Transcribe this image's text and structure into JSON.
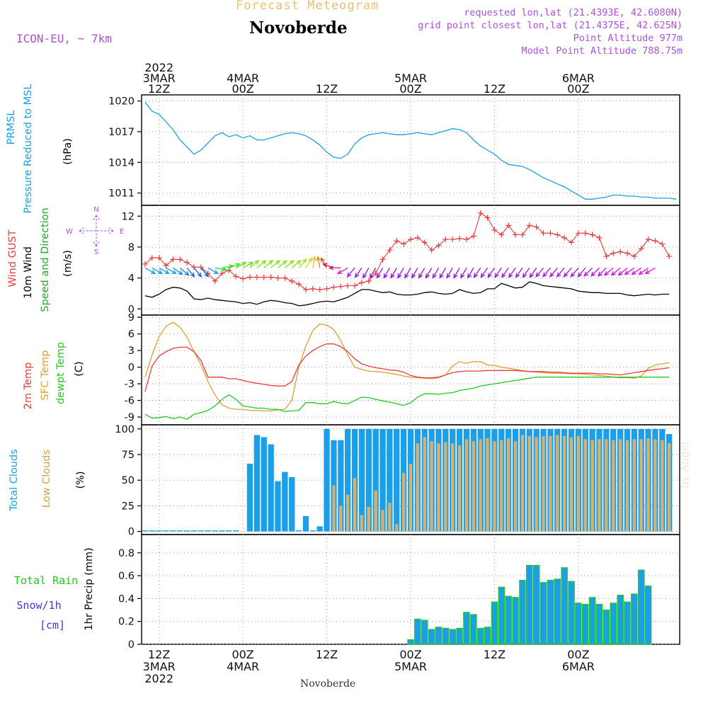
{
  "header": {
    "forecast_title": "Forecast Meteogram",
    "location": "Novoberde",
    "model": "ICON-EU, ~ 7km",
    "requested": "requested lon,lat (21.4393E, 42.6080N)",
    "gridpoint": "grid point closest lon,lat (21.4375E, 42.625N)",
    "point_altitude": "Point Altitude 977m",
    "model_altitude": "Model Point Altitude 788.75m",
    "watermark": "by Angel",
    "footer_location": "Novoberde"
  },
  "time_axis": {
    "top_labels": [
      {
        "t": 0,
        "lines": [
          "2022",
          "3MAR",
          "12Z"
        ]
      },
      {
        "t": 12,
        "lines": [
          "4MAR",
          "00Z"
        ]
      },
      {
        "t": 24,
        "lines": [
          "12Z"
        ]
      },
      {
        "t": 36,
        "lines": [
          "5MAR",
          "00Z"
        ]
      },
      {
        "t": 48,
        "lines": [
          "12Z"
        ]
      },
      {
        "t": 60,
        "lines": [
          "6MAR",
          "00Z"
        ]
      }
    ],
    "bottom_labels": [
      {
        "t": 0,
        "lines": [
          "12Z",
          "3MAR",
          "2022"
        ]
      },
      {
        "t": 12,
        "lines": [
          "00Z",
          "4MAR"
        ]
      },
      {
        "t": 24,
        "lines": [
          "12Z"
        ]
      },
      {
        "t": 36,
        "lines": [
          "00Z",
          "5MAR"
        ]
      },
      {
        "t": 48,
        "lines": [
          "12Z"
        ]
      },
      {
        "t": 60,
        "lines": [
          "00Z",
          "6MAR"
        ]
      }
    ]
  },
  "colors": {
    "pressure": "#1a9fe8",
    "gust": "#e83c3c",
    "wind": "#000000",
    "temp2m": "#e83c3c",
    "sfc": "#e0a030",
    "dewpt": "#22c822",
    "cloud_total": "#1a9fe8",
    "cloud_low": "#d8b070",
    "rain": "#1a9fe8",
    "rain_edge": "#22c822",
    "purple": "#b050e0",
    "orange_title": "#f0c070"
  },
  "chart_data": [
    {
      "type": "line",
      "panel": "pressure",
      "ylabels": [
        "PRMSL",
        "Pressure Reduced to MSL",
        "(hPa)"
      ],
      "yticks": [
        1011,
        1014,
        1017,
        1020
      ],
      "ylim": [
        1009.8,
        1020.6
      ],
      "xlim": [
        -2.5,
        74.5
      ],
      "series": [
        {
          "name": "PRMSL",
          "x": [
            -2,
            -1,
            0,
            2,
            3,
            4,
            5,
            6,
            7,
            8,
            9,
            10,
            11,
            12,
            13,
            14,
            15,
            16,
            17,
            18,
            19,
            20,
            21,
            22,
            23,
            24,
            25,
            26,
            27,
            28,
            29,
            30,
            31,
            32,
            33,
            34,
            35,
            36,
            37,
            38,
            39,
            40,
            41,
            42,
            43,
            44,
            45,
            46,
            47,
            48,
            49,
            50,
            51,
            52,
            53,
            54,
            55,
            56,
            57,
            58,
            59,
            60,
            61,
            62,
            63,
            64,
            65,
            66,
            67,
            68,
            69,
            70,
            71,
            72,
            73,
            74
          ],
          "y": [
            1019.9,
            1019.0,
            1018.7,
            1017.2,
            1016.2,
            1015.5,
            1014.8,
            1015.2,
            1015.9,
            1016.6,
            1016.9,
            1016.5,
            1016.7,
            1016.4,
            1016.6,
            1016.2,
            1016.2,
            1016.4,
            1016.6,
            1016.8,
            1016.9,
            1016.8,
            1016.6,
            1016.2,
            1015.7,
            1015.0,
            1014.5,
            1014.4,
            1014.8,
            1015.8,
            1016.4,
            1016.7,
            1016.8,
            1016.9,
            1016.8,
            1016.7,
            1016.7,
            1016.8,
            1016.9,
            1016.8,
            1016.7,
            1016.9,
            1017.1,
            1017.3,
            1017.2,
            1016.9,
            1016.2,
            1015.6,
            1015.2,
            1014.8,
            1014.2,
            1013.8,
            1013.7,
            1013.6,
            1013.3,
            1012.9,
            1012.5,
            1012.2,
            1011.9,
            1011.6,
            1011.2,
            1010.8,
            1010.4,
            1010.4,
            1010.5,
            1010.6,
            1010.8,
            1010.8,
            1010.7,
            1010.7,
            1010.6,
            1010.6,
            1010.5,
            1010.5,
            1010.5,
            1010.4
          ]
        }
      ]
    },
    {
      "type": "line",
      "panel": "wind",
      "ylabels": [
        "Wind GUST",
        "10m Wind",
        "Speed and Direction",
        "(m/s)"
      ],
      "compass": [
        "N",
        "W",
        "E",
        "S"
      ],
      "yticks": [
        0,
        4,
        8,
        12
      ],
      "ylim": [
        -0.8,
        13.4
      ],
      "xlim": [
        -2.5,
        74.5
      ],
      "gust": [
        5.8,
        6.6,
        6.6,
        5.6,
        6.4,
        6.4,
        6.0,
        5.4,
        5.4,
        4.6,
        3.6,
        4.6,
        5.0,
        4.2,
        3.9,
        4.1,
        4.1,
        4.1,
        4.1,
        4.0,
        4.0,
        3.6,
        3.2,
        2.5,
        2.6,
        2.5,
        2.6,
        2.8,
        2.9,
        3.0,
        3.0,
        3.4,
        3.6,
        4.6,
        6.4,
        7.6,
        8.8,
        8.4,
        9.0,
        9.2,
        8.6,
        7.6,
        8.2,
        9.0,
        9.0,
        9.1,
        9.0,
        9.4,
        12.4,
        11.8,
        10.2,
        9.6,
        10.8,
        9.6,
        9.6,
        10.8,
        10.6,
        9.8,
        9.8,
        9.6,
        9.2,
        8.6,
        9.8,
        9.8,
        9.6,
        9.2,
        6.8,
        7.2,
        7.4,
        7.2,
        6.8,
        7.8,
        9.0,
        8.8,
        8.4,
        6.8
      ],
      "speed": [
        1.7,
        1.5,
        1.9,
        2.5,
        2.8,
        2.7,
        2.3,
        1.3,
        1.2,
        1.4,
        1.2,
        1.1,
        1.0,
        0.9,
        0.7,
        0.8,
        0.6,
        0.9,
        1.1,
        1.0,
        0.8,
        0.7,
        0.4,
        0.5,
        0.7,
        0.9,
        1.0,
        0.9,
        1.2,
        1.5,
        2.0,
        2.5,
        2.5,
        2.3,
        2.1,
        2.2,
        1.9,
        1.8,
        1.8,
        1.9,
        2.1,
        2.2,
        2.0,
        1.9,
        2.0,
        2.5,
        2.2,
        2.0,
        2.1,
        2.6,
        2.6,
        3.3,
        3.0,
        2.7,
        2.8,
        3.5,
        3.3,
        3.0,
        2.9,
        2.8,
        2.7,
        2.6,
        2.3,
        2.2,
        2.1,
        2.1,
        2.0,
        2.0,
        2.0,
        1.8,
        1.7,
        1.8,
        1.9,
        1.8,
        1.9,
        1.9
      ],
      "dir_deg": [
        300,
        300,
        300,
        300,
        305,
        310,
        320,
        320,
        320,
        300,
        280,
        260,
        250,
        240,
        240,
        230,
        230,
        230,
        230,
        230,
        230,
        230,
        220,
        210,
        190,
        170,
        150,
        110,
        90,
        60,
        40,
        35,
        30,
        30,
        30,
        30,
        30,
        30,
        30,
        30,
        30,
        30,
        30,
        30,
        30,
        30,
        30,
        30,
        35,
        35,
        35,
        35,
        35,
        35,
        35,
        35,
        35,
        40,
        40,
        40,
        40,
        40,
        40,
        40,
        45,
        45,
        45,
        50,
        50,
        50,
        55,
        55,
        55,
        60,
        60,
        60
      ]
    },
    {
      "type": "line",
      "panel": "temperature",
      "ylabels": [
        "2m Temp",
        "SFC Temp",
        "dewpt Temp",
        "(C)"
      ],
      "yticks": [
        -9,
        -6,
        -3,
        0,
        3,
        6,
        9
      ],
      "ylim": [
        -10.4,
        9.4
      ],
      "xlim": [
        -2.5,
        74.5
      ],
      "series": [
        {
          "name": "2m Temp",
          "y": [
            -4.4,
            0.2,
            2.0,
            2.8,
            3.4,
            3.6,
            3.6,
            2.8,
            1.2,
            -1.8,
            -1.8,
            -1.8,
            -2.1,
            -2.1,
            -2.4,
            -2.7,
            -2.9,
            -3.1,
            -3.3,
            -3.4,
            -3.4,
            -2.6,
            0.4,
            2.0,
            3.0,
            3.7,
            4.2,
            4.2,
            3.7,
            2.8,
            1.5,
            0.6,
            0.2,
            -0.1,
            -0.3,
            -0.5,
            -0.6,
            -0.9,
            -1.5,
            -1.8,
            -1.9,
            -1.9,
            -1.8,
            -1.4,
            -1.0,
            -0.8,
            -0.7,
            -0.7,
            -0.7,
            -0.6,
            -0.6,
            -0.6,
            -0.6,
            -0.6,
            -0.7,
            -0.8,
            -0.8,
            -0.8,
            -0.9,
            -0.9,
            -1.0,
            -1.1,
            -1.1,
            -1.1,
            -1.1,
            -1.2,
            -1.2,
            -1.3,
            -1.4,
            -1.2,
            -1.0,
            -0.8,
            -0.6,
            -0.4,
            -0.3,
            -0.1
          ]
        },
        {
          "name": "SFC Temp",
          "y": [
            -1.8,
            2.2,
            5.5,
            7.4,
            8.1,
            7.2,
            5.4,
            2.8,
            0.4,
            -2.6,
            -5.0,
            -6.8,
            -7.4,
            -7.6,
            -7.6,
            -7.8,
            -7.8,
            -7.9,
            -7.9,
            -7.7,
            -7.6,
            -6.0,
            0.0,
            3.8,
            6.6,
            7.8,
            7.6,
            6.8,
            4.8,
            2.2,
            0.0,
            -0.4,
            -0.7,
            -0.8,
            -0.9,
            -1.1,
            -1.3,
            -1.6,
            -1.8,
            -1.9,
            -2.0,
            -2.1,
            -1.9,
            -1.4,
            0.2,
            1.0,
            0.7,
            1.0,
            1.0,
            0.4,
            0.3,
            0.0,
            -0.2,
            -0.4,
            -0.6,
            -0.8,
            -0.9,
            -1.0,
            -1.1,
            -1.1,
            -1.1,
            -1.2,
            -1.2,
            -1.3,
            -1.4,
            -1.5,
            -1.6,
            -1.8,
            -1.9,
            -1.9,
            -2.0,
            -1.6,
            -0.2,
            0.4,
            0.6,
            0.8
          ]
        },
        {
          "name": "dewpt Temp",
          "y": [
            -8.5,
            -9.2,
            -9.1,
            -8.9,
            -9.3,
            -9.0,
            -9.4,
            -8.5,
            -8.2,
            -7.8,
            -7.0,
            -5.8,
            -5.0,
            -5.8,
            -7.0,
            -7.2,
            -7.4,
            -7.4,
            -7.6,
            -7.6,
            -8.0,
            -7.9,
            -7.8,
            -6.4,
            -6.4,
            -6.6,
            -6.6,
            -6.2,
            -6.5,
            -6.6,
            -6.0,
            -5.4,
            -5.5,
            -5.8,
            -6.1,
            -6.3,
            -6.6,
            -6.9,
            -6.4,
            -5.4,
            -4.8,
            -4.8,
            -4.9,
            -4.7,
            -4.6,
            -4.2,
            -4.0,
            -3.8,
            -3.4,
            -3.2,
            -3.0,
            -2.8,
            -2.6,
            -2.4,
            -2.2,
            -2.0,
            -1.8,
            -1.8,
            -1.8,
            -1.8,
            -1.8,
            -1.8,
            -1.8,
            -1.8,
            -1.8,
            -1.8,
            -1.8,
            -1.8,
            -1.8,
            -1.8,
            -1.8,
            -1.8,
            -1.8,
            -1.8,
            -1.8,
            -1.8
          ]
        }
      ]
    },
    {
      "type": "bar",
      "panel": "clouds",
      "ylabels": [
        "Total Clouds",
        "Low Clouds",
        "(%)"
      ],
      "yticks": [
        0,
        25,
        50,
        75,
        100
      ],
      "ylim": [
        -3,
        104
      ],
      "xlim": [
        -2.5,
        74.5
      ],
      "series": [
        {
          "name": "Total Clouds",
          "values": [
            1,
            1,
            1,
            1,
            1,
            1,
            1,
            1,
            1,
            1,
            1,
            1,
            1,
            1,
            0,
            66,
            94,
            92,
            85,
            49,
            58,
            53,
            1,
            15,
            1,
            5,
            100,
            89,
            89,
            100,
            100,
            100,
            100,
            100,
            100,
            100,
            100,
            100,
            100,
            100,
            100,
            100,
            100,
            100,
            100,
            100,
            100,
            100,
            100,
            100,
            100,
            100,
            100,
            100,
            100,
            100,
            100,
            100,
            100,
            100,
            100,
            100,
            100,
            100,
            100,
            100,
            100,
            100,
            100,
            100,
            100,
            100,
            100,
            100,
            100,
            95
          ]
        },
        {
          "name": "Low Clouds",
          "values": [
            0,
            0,
            0,
            0,
            0,
            0,
            0,
            0,
            0,
            0,
            0,
            0,
            0,
            0,
            0,
            0,
            0,
            0,
            0,
            0,
            0,
            0,
            0,
            0,
            0,
            0,
            0,
            45,
            25,
            36,
            52,
            16,
            24,
            40,
            21,
            28,
            7,
            57,
            66,
            86,
            92,
            88,
            86,
            87,
            86,
            84,
            90,
            88,
            90,
            91,
            88,
            89,
            91,
            88,
            94,
            93,
            92,
            93,
            93,
            94,
            93,
            92,
            93,
            90,
            89,
            90,
            90,
            89,
            90,
            89,
            90,
            90,
            91,
            90,
            89,
            86
          ]
        }
      ]
    },
    {
      "type": "bar",
      "panel": "precip",
      "ylabels": [
        "1hr Precip (mm)"
      ],
      "side_labels": [
        "Total  Rain",
        "Snow/1h",
        "[cm]"
      ],
      "yticks": [
        0,
        0.2,
        0.4,
        0.6,
        0.8
      ],
      "ylim": [
        0,
        0.96
      ],
      "xlim": [
        -2.5,
        74.5
      ],
      "series": [
        {
          "name": "Total Rain",
          "values": [
            0,
            0,
            0,
            0,
            0,
            0,
            0,
            0,
            0,
            0,
            0,
            0,
            0,
            0,
            0,
            0,
            0,
            0,
            0,
            0,
            0,
            0,
            0,
            0,
            0,
            0,
            0,
            0,
            0,
            0,
            0,
            0,
            0,
            0,
            0,
            0,
            0,
            0,
            0.04,
            0.22,
            0.21,
            0.13,
            0.15,
            0.14,
            0.13,
            0.14,
            0.28,
            0.26,
            0.14,
            0.15,
            0.37,
            0.5,
            0.42,
            0.41,
            0.56,
            0.69,
            0.69,
            0.54,
            0.56,
            0.57,
            0.67,
            0.55,
            0.36,
            0.35,
            0.41,
            0.35,
            0.3,
            0.36,
            0.43,
            0.37,
            0.44,
            0.65,
            0.51,
            0,
            0,
            0
          ]
        }
      ]
    }
  ]
}
